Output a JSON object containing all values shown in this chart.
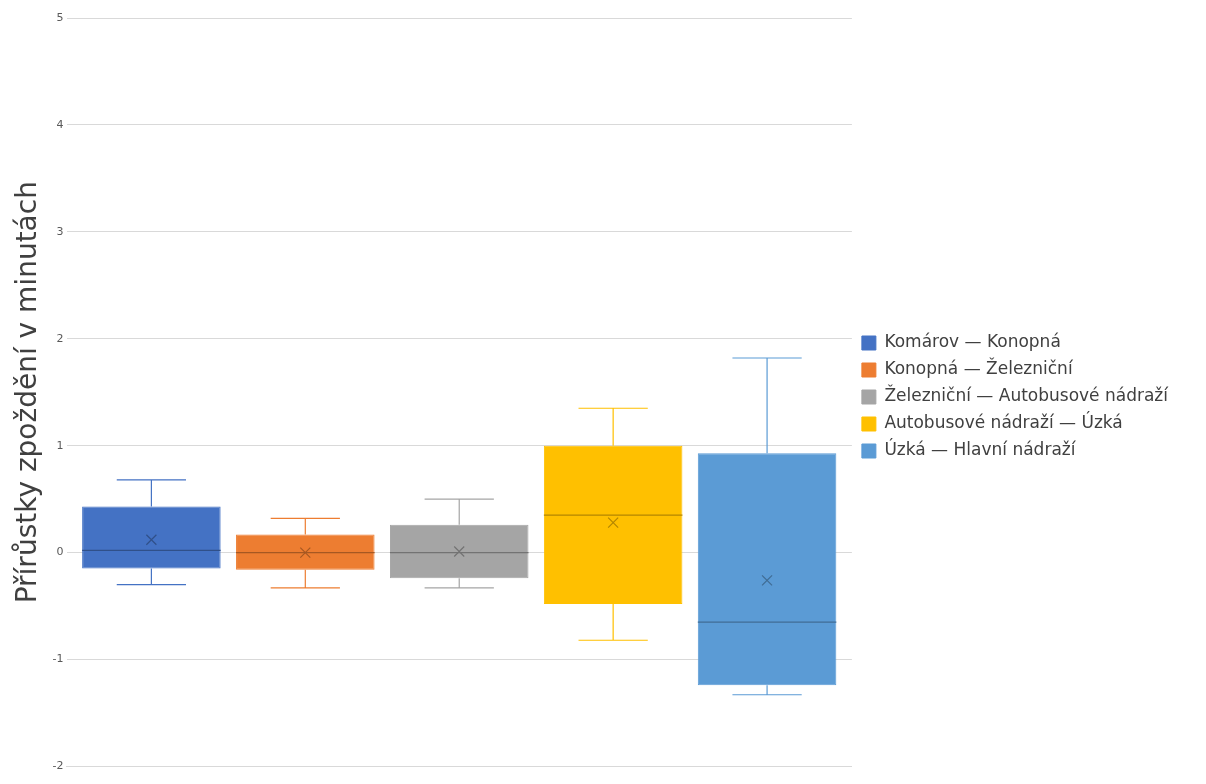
{
  "chart_data": {
    "type": "box",
    "ylabel": "Přírůstky zpoždění v minutách",
    "categories": [
      null
    ],
    "ylim": [
      -2,
      5
    ],
    "yticks": [
      -2,
      -1,
      0,
      1,
      2,
      3,
      4,
      5
    ],
    "grid": "y",
    "legend": "right",
    "tick_labels": "y",
    "marker": "cross",
    "series": [
      {
        "name": "Komárov — Konopná",
        "color": "#4472c4",
        "boxes": [
          {
            "low": -0.3,
            "q1": -0.15,
            "median": 0.02,
            "q3": 0.43,
            "high": 0.68,
            "mean": 0.12
          }
        ]
      },
      {
        "name": "Konopná — Železniční",
        "color": "#ed7d31",
        "boxes": [
          {
            "low": -0.33,
            "q1": -0.16,
            "median": 0.0,
            "q3": 0.17,
            "high": 0.32,
            "mean": 0.0
          }
        ]
      },
      {
        "name": "Železniční — Autobusové nádraží",
        "color": "#a5a5a5",
        "boxes": [
          {
            "low": -0.33,
            "q1": -0.24,
            "median": 0.0,
            "q3": 0.26,
            "high": 0.5,
            "mean": 0.01
          }
        ]
      },
      {
        "name": "Autobusové nádraží — Úzká",
        "color": "#ffc000",
        "boxes": [
          {
            "low": -0.82,
            "q1": -0.48,
            "median": 0.35,
            "q3": 1.0,
            "high": 1.35,
            "mean": 0.28
          }
        ]
      },
      {
        "name": "Úzká — Hlavní nádraží",
        "color": "#5b9bd5",
        "boxes": [
          {
            "low": -1.33,
            "q1": -1.24,
            "median": -0.65,
            "q3": 0.93,
            "high": 1.82,
            "mean": -0.26
          }
        ]
      }
    ]
  }
}
